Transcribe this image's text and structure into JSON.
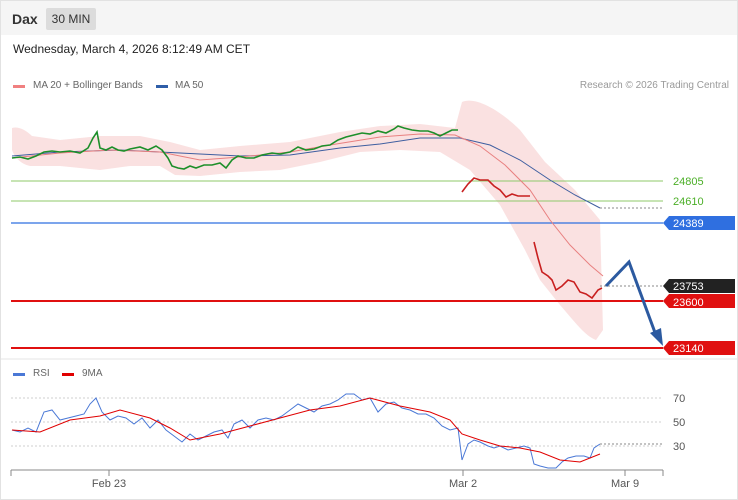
{
  "header": {
    "symbol": "Dax",
    "interval": "30 MIN",
    "datetime": "Wednesday, March 4, 2026 8:12:49 AM CET"
  },
  "legend": {
    "ma20": "MA 20 + Bollinger Bands",
    "ma50": "MA 50",
    "copyright": "Research © 2026 Trading Central",
    "ma20_color": "#f08080",
    "ma50_color": "#2f5ea8"
  },
  "rsi_legend": {
    "rsi": "RSI",
    "ma9": "9MA",
    "rsi_color": "#4a78d6",
    "ma9_color": "#e00000"
  },
  "levels": {
    "resistance_2": "24805",
    "resistance_1": "24610",
    "pivot": "24389",
    "last_price": "23753",
    "support_1": "23600",
    "support_2": "23140"
  },
  "rsi_ticks": [
    "70",
    "50",
    "30"
  ],
  "x_labels": [
    "Feb 23",
    "Mar 2",
    "Mar 9"
  ]
}
